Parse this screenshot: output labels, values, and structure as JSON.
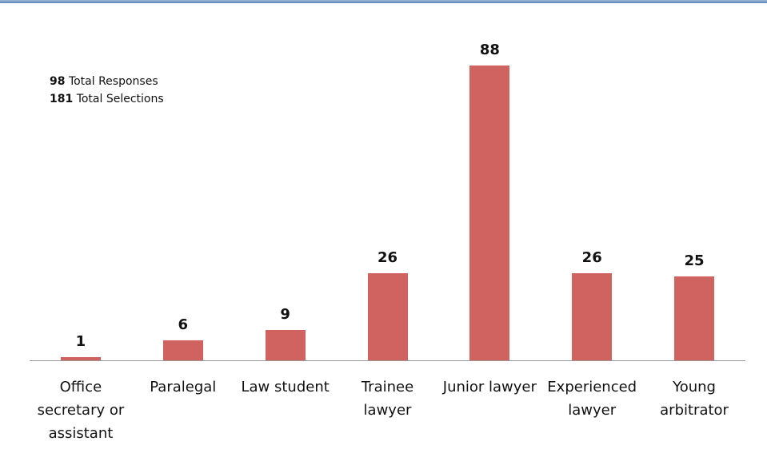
{
  "chart_data": {
    "type": "bar",
    "annotations": [
      {
        "value": 98,
        "label": "Total Responses"
      },
      {
        "value": 181,
        "label": "Total Selections"
      }
    ],
    "categories": [
      "Office secretary or assistant",
      "Paralegal",
      "Law student",
      "Trainee lawyer",
      "Junior lawyer",
      "Experienced lawyer",
      "Young arbitrator"
    ],
    "values": [
      1,
      6,
      9,
      26,
      88,
      26,
      25
    ],
    "color": "#d0635f"
  }
}
